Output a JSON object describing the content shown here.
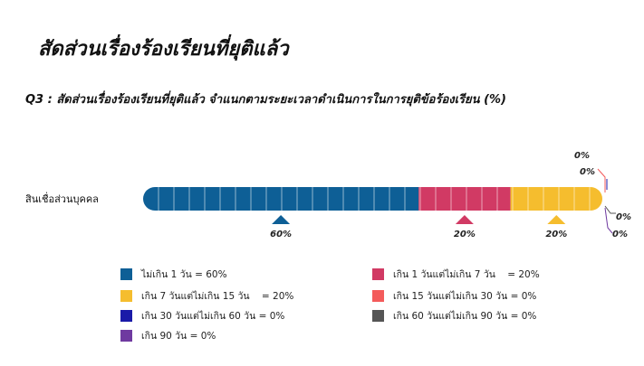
{
  "title": "สัดส่วนเรื่องร้องเรียนที่ยุติแล้ว",
  "subtitle": "Q3 : สัดส่วนเรื่องร้องเรียนที่ยุติแล้ว จำแนกตามระยะเวลาดำเนินการในการยุติข้อร้องเรียน (%)",
  "chart_data": {
    "type": "bar",
    "orientation": "horizontal-stacked",
    "categories": [
      "สินเชื่อส่วนบุคคล"
    ],
    "series": [
      {
        "name": "ไม่เกิน 1 วัน = 60%",
        "values": [
          60
        ],
        "color": "#0e5f96",
        "label": "60%"
      },
      {
        "name": "เกิน 1 วันแต่ไม่เกิน 7 วัน    = 20%",
        "values": [
          20
        ],
        "color": "#d13a64",
        "label": "20%"
      },
      {
        "name": "เกิน 7 วันแต่ไม่เกิน 15 วัน    = 20%",
        "values": [
          20
        ],
        "color": "#f5bd2e",
        "label": "20%"
      },
      {
        "name": "เกิน 15 วันแต่ไม่เกิน 30 วัน = 0%",
        "values": [
          0
        ],
        "color": "#f35b5b",
        "label": "0%"
      },
      {
        "name": "เกิน 30 วันแต่ไม่เกิน 60 วัน = 0%",
        "values": [
          0
        ],
        "color": "#1a1aa8",
        "label": "0%"
      },
      {
        "name": "เกิน 60 วันแต่ไม่เกิน 90 วัน = 0%",
        "values": [
          0
        ],
        "color": "#555555",
        "label": "0%"
      },
      {
        "name": "เกิน 90 วัน = 0%",
        "values": [
          0
        ],
        "color": "#6f3aa0",
        "label": "0%"
      }
    ],
    "legend_order": [
      0,
      1,
      2,
      3,
      4,
      5,
      6
    ],
    "xlim": [
      0,
      100
    ],
    "grid": false,
    "legend_position": "bottom"
  }
}
